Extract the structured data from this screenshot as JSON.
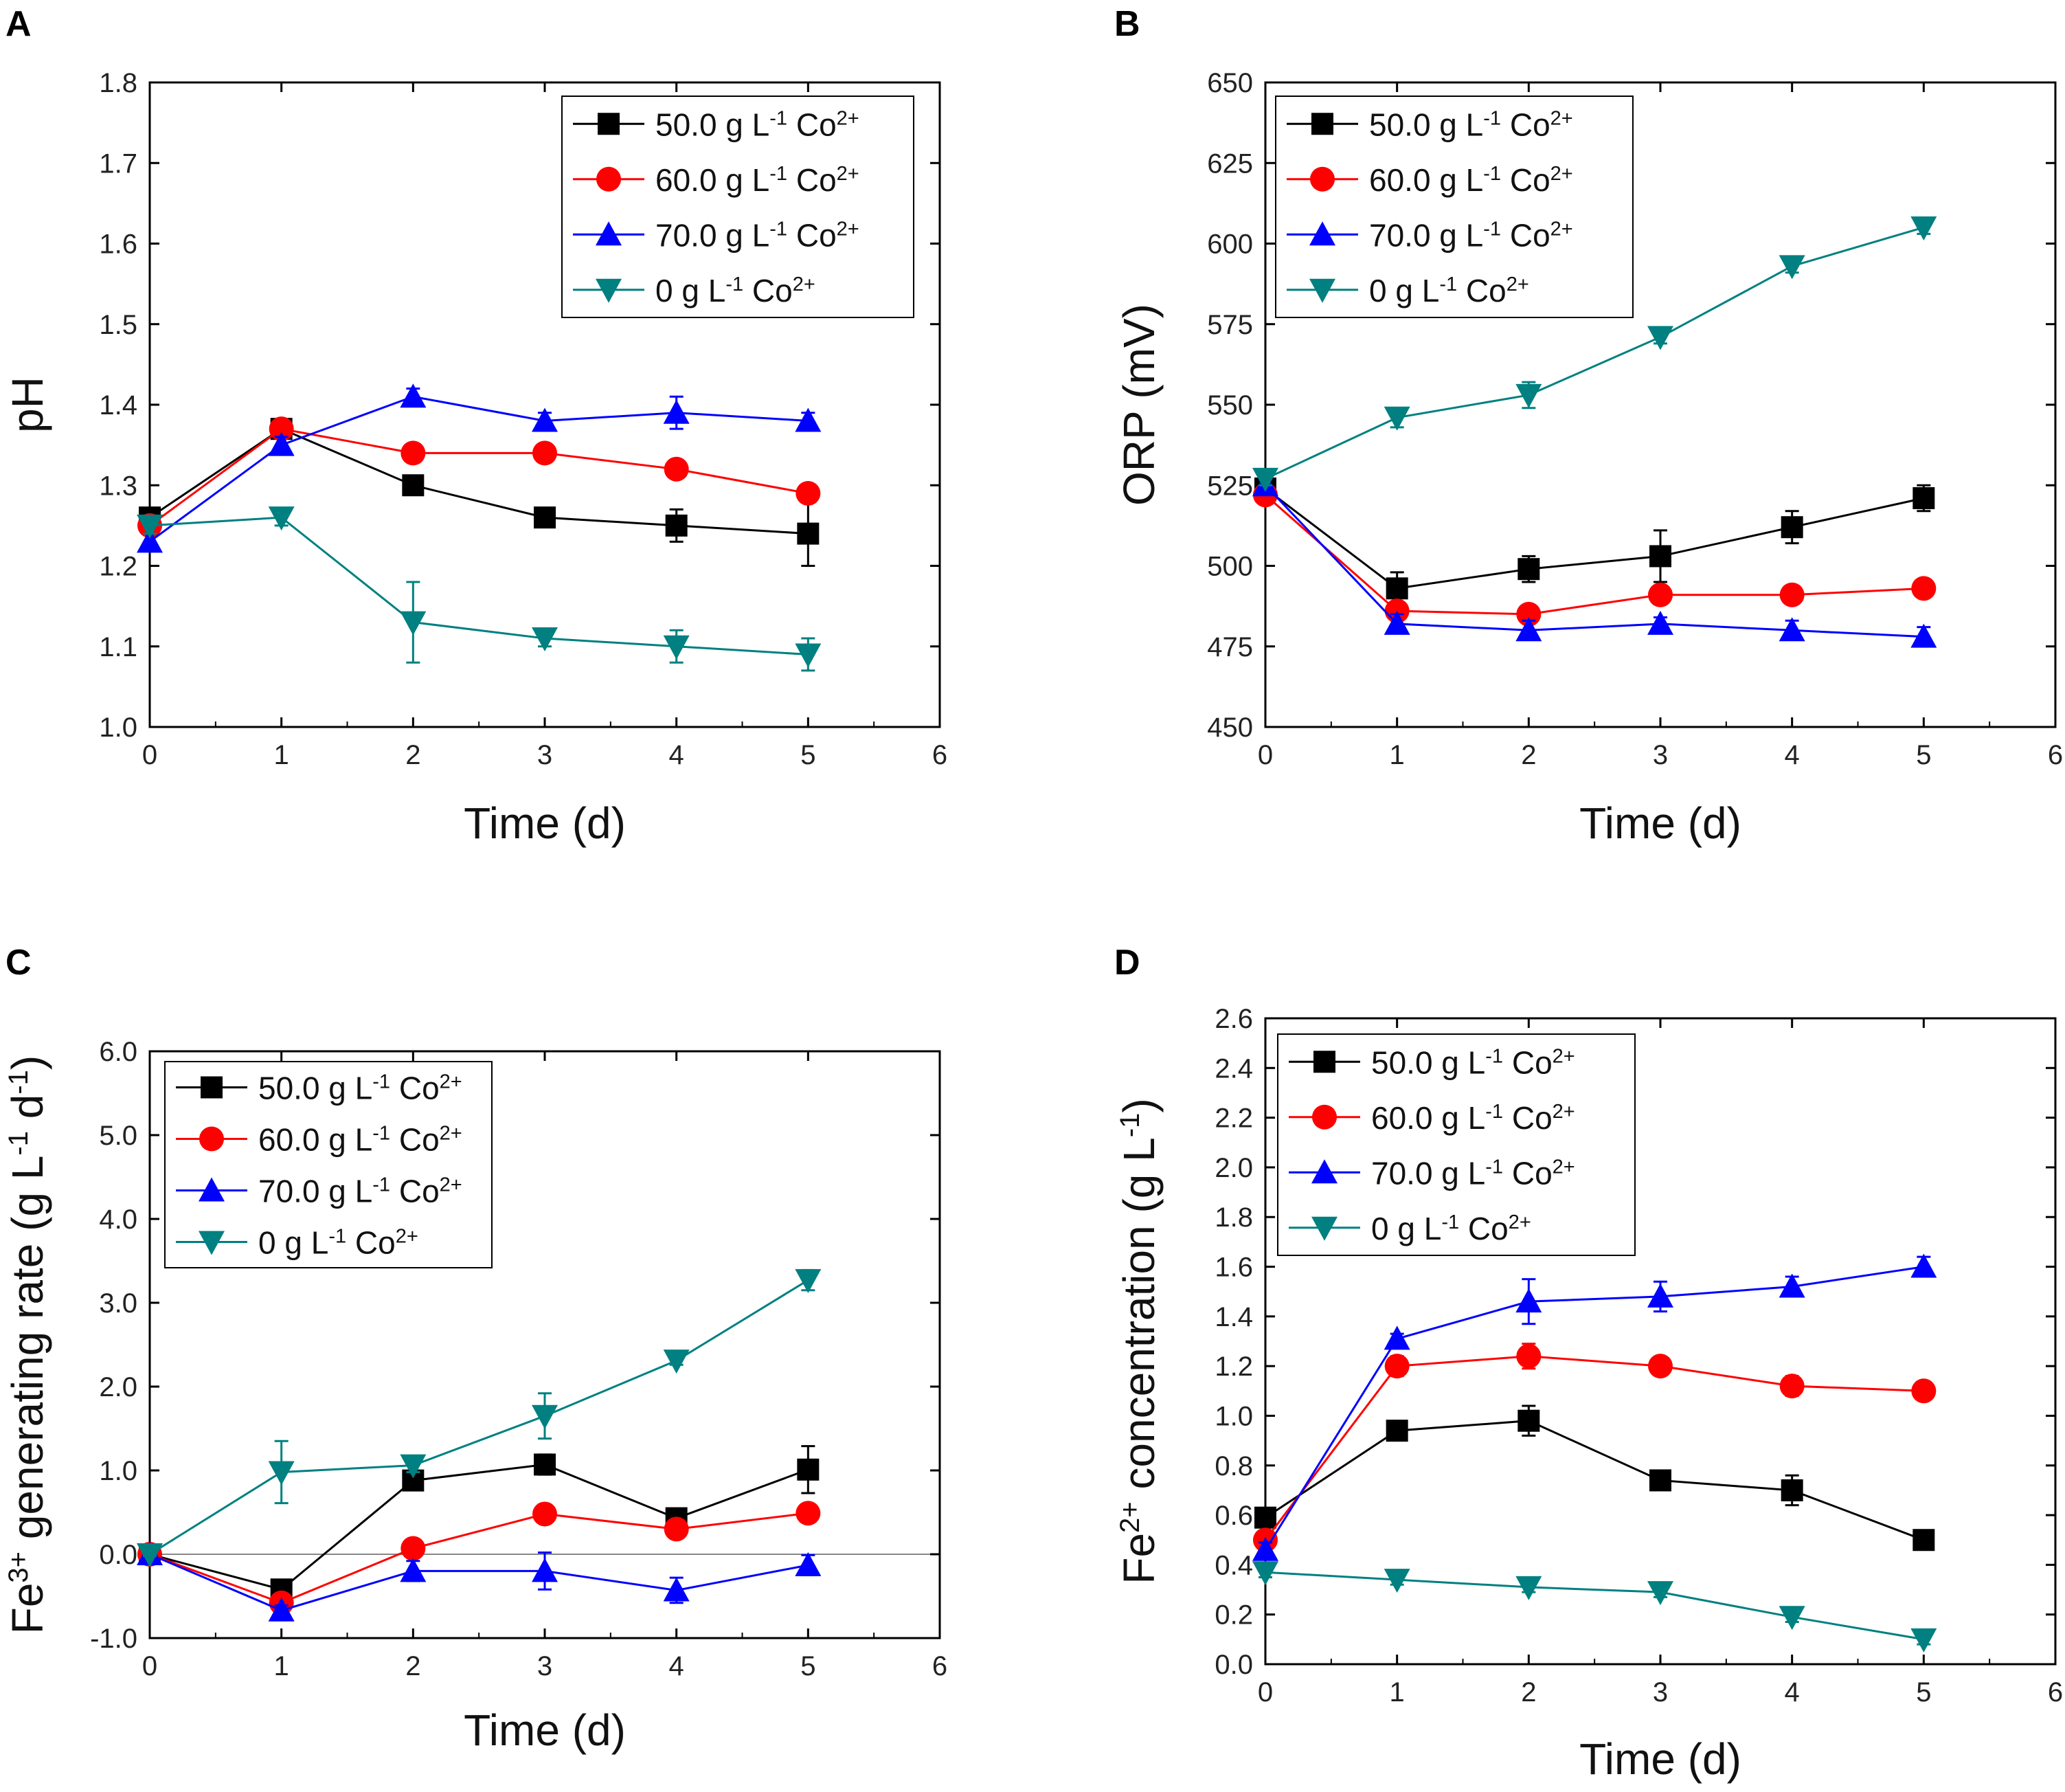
{
  "colors": {
    "black": "#000000",
    "red": "#ff0000",
    "blue": "#0000ff",
    "teal": "#008080",
    "zero_line": "#888888"
  },
  "legend_entries": [
    {
      "key": "s50",
      "value": "50.0",
      "unit": "g L",
      "exp": "-1",
      "ion": "Co",
      "charge": "2+",
      "marker": "square",
      "color": "#000000"
    },
    {
      "key": "s60",
      "value": "60.0",
      "unit": "g L",
      "exp": "-1",
      "ion": "Co",
      "charge": "2+",
      "marker": "circle",
      "color": "#ff0000"
    },
    {
      "key": "s70",
      "value": "70.0",
      "unit": "g L",
      "exp": "-1",
      "ion": "Co",
      "charge": "2+",
      "marker": "triangle-up",
      "color": "#0000ff"
    },
    {
      "key": "s0",
      "value": "0",
      "unit": "g L",
      "exp": "-1",
      "ion": "Co",
      "charge": "2+",
      "marker": "triangle-down",
      "color": "#008080"
    }
  ],
  "chart_data": [
    {
      "panel": "A",
      "type": "line",
      "xlabel": "Time (d)",
      "ylabel": {
        "parts": [
          {
            "t": "pH"
          }
        ]
      },
      "xlim": [
        0,
        6
      ],
      "xticks": [
        0,
        1,
        2,
        3,
        4,
        5,
        6
      ],
      "ylim": [
        1.0,
        1.8
      ],
      "yticks": [
        1.0,
        1.1,
        1.2,
        1.3,
        1.4,
        1.5,
        1.6,
        1.7,
        1.8
      ],
      "ydecimals": 1,
      "legend": "top-right",
      "x": [
        0,
        1,
        2,
        3,
        4,
        5
      ],
      "series": [
        {
          "key": "s50",
          "values": [
            1.26,
            1.37,
            1.3,
            1.26,
            1.25,
            1.24
          ],
          "errors": [
            0.01,
            0.01,
            0.01,
            0.01,
            0.02,
            0.04
          ]
        },
        {
          "key": "s60",
          "values": [
            1.25,
            1.37,
            1.34,
            1.34,
            1.32,
            1.29
          ],
          "errors": [
            0.01,
            0.01,
            0.01,
            0.01,
            0.01,
            0.01
          ]
        },
        {
          "key": "s70",
          "values": [
            1.23,
            1.35,
            1.41,
            1.38,
            1.39,
            1.38
          ],
          "errors": [
            0.01,
            0.01,
            0.01,
            0.01,
            0.02,
            0.01
          ]
        },
        {
          "key": "s0",
          "values": [
            1.25,
            1.26,
            1.13,
            1.11,
            1.1,
            1.09
          ],
          "errors": [
            0.01,
            0.01,
            0.05,
            0.01,
            0.02,
            0.02
          ]
        }
      ]
    },
    {
      "panel": "B",
      "type": "line",
      "xlabel": "Time (d)",
      "ylabel": {
        "parts": [
          {
            "t": "ORP (mV)"
          }
        ]
      },
      "xlim": [
        0,
        6
      ],
      "xticks": [
        0,
        1,
        2,
        3,
        4,
        5,
        6
      ],
      "ylim": [
        450,
        650
      ],
      "yticks": [
        450,
        475,
        500,
        525,
        550,
        575,
        600,
        625,
        650
      ],
      "ydecimals": 0,
      "legend": "top-left",
      "x": [
        0,
        1,
        2,
        3,
        4,
        5
      ],
      "series": [
        {
          "key": "s50",
          "values": [
            524,
            493,
            499,
            503,
            512,
            521
          ],
          "errors": [
            2,
            5,
            4,
            8,
            5,
            4
          ]
        },
        {
          "key": "s60",
          "values": [
            522,
            486,
            485,
            491,
            491,
            493
          ],
          "errors": [
            2,
            2,
            2,
            2,
            2,
            2
          ]
        },
        {
          "key": "s70",
          "values": [
            525,
            482,
            480,
            482,
            480,
            478
          ],
          "errors": [
            2,
            3,
            3,
            2,
            3,
            3
          ]
        },
        {
          "key": "s0",
          "values": [
            527,
            546,
            553,
            571,
            593,
            605
          ],
          "errors": [
            2,
            3,
            4,
            2,
            2,
            2
          ]
        }
      ]
    },
    {
      "panel": "C",
      "type": "line",
      "xlabel": "Time (d)",
      "ylabel": {
        "parts": [
          {
            "t": "Fe"
          },
          {
            "t": "3+",
            "sup": true
          },
          {
            "t": " generating rate (g L"
          },
          {
            "t": "-1",
            "sup": true
          },
          {
            "t": " d"
          },
          {
            "t": "-1",
            "sup": true
          },
          {
            "t": ")"
          }
        ]
      },
      "xlim": [
        0,
        6
      ],
      "xticks": [
        0,
        1,
        2,
        3,
        4,
        5,
        6
      ],
      "ylim": [
        -1.0,
        6.0
      ],
      "yticks": [
        -1.0,
        0.0,
        1.0,
        2.0,
        3.0,
        4.0,
        5.0,
        6.0
      ],
      "ydecimals": 1,
      "zero_line": true,
      "legend": "top-left",
      "x": [
        0,
        1,
        2,
        3,
        4,
        5
      ],
      "series": [
        {
          "key": "s50",
          "values": [
            0.0,
            -0.42,
            0.88,
            1.07,
            0.43,
            1.01
          ],
          "errors": [
            0.02,
            0.05,
            0.08,
            0.12,
            0.06,
            0.28
          ]
        },
        {
          "key": "s60",
          "values": [
            0.0,
            -0.58,
            0.07,
            0.48,
            0.3,
            0.49
          ],
          "errors": [
            0.02,
            0.05,
            0.05,
            0.05,
            0.05,
            0.05
          ]
        },
        {
          "key": "s70",
          "values": [
            0.0,
            -0.67,
            -0.2,
            -0.2,
            -0.43,
            -0.13
          ],
          "errors": [
            0.02,
            0.06,
            0.12,
            0.22,
            0.15,
            0.12
          ]
        },
        {
          "key": "s0",
          "values": [
            0.0,
            0.98,
            1.06,
            1.65,
            2.31,
            3.27
          ],
          "errors": [
            0.02,
            0.37,
            0.08,
            0.27,
            0.05,
            0.12
          ]
        }
      ]
    },
    {
      "panel": "D",
      "type": "line",
      "xlabel": "Time (d)",
      "ylabel": {
        "parts": [
          {
            "t": "Fe"
          },
          {
            "t": "2+",
            "sup": true
          },
          {
            "t": " concentration (g L"
          },
          {
            "t": "-1",
            "sup": true
          },
          {
            "t": ")"
          }
        ]
      },
      "xlim": [
        0,
        6
      ],
      "xticks": [
        0,
        1,
        2,
        3,
        4,
        5,
        6
      ],
      "ylim": [
        0.0,
        2.6
      ],
      "yticks": [
        0.0,
        0.2,
        0.4,
        0.6,
        0.8,
        1.0,
        1.2,
        1.4,
        1.6,
        1.8,
        2.0,
        2.2,
        2.4,
        2.6
      ],
      "ydecimals": 1,
      "legend": "top-left",
      "x": [
        0,
        1,
        2,
        3,
        4,
        5
      ],
      "series": [
        {
          "key": "s50",
          "values": [
            0.59,
            0.94,
            0.98,
            0.74,
            0.7,
            0.5
          ],
          "errors": [
            0.03,
            0.02,
            0.06,
            0.02,
            0.06,
            0.02
          ]
        },
        {
          "key": "s60",
          "values": [
            0.5,
            1.2,
            1.24,
            1.2,
            1.12,
            1.1
          ],
          "errors": [
            0.03,
            0.04,
            0.05,
            0.03,
            0.04,
            0.02
          ]
        },
        {
          "key": "s70",
          "values": [
            0.46,
            1.31,
            1.46,
            1.48,
            1.52,
            1.6
          ],
          "errors": [
            0.03,
            0.02,
            0.09,
            0.06,
            0.04,
            0.04
          ]
        },
        {
          "key": "s0",
          "values": [
            0.37,
            0.34,
            0.31,
            0.29,
            0.19,
            0.1
          ],
          "errors": [
            0.02,
            0.02,
            0.02,
            0.02,
            0.02,
            0.02
          ]
        }
      ]
    }
  ]
}
